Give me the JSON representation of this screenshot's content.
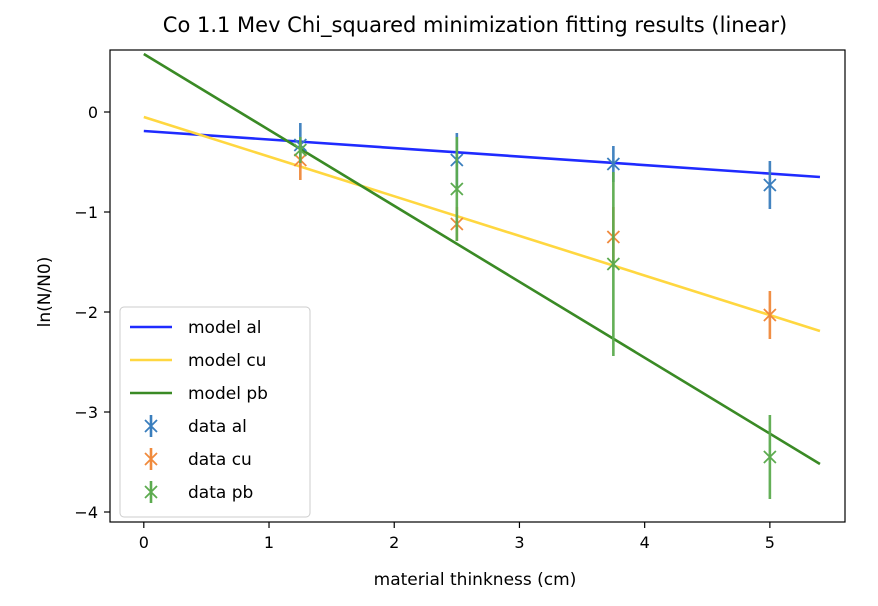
{
  "chart_data": {
    "type": "line",
    "title": "Co 1.1 Mev Chi_squared minimization fitting results (linear)",
    "xlabel": "material thinkness (cm)",
    "ylabel": "ln(N/N0)",
    "xlim": [
      -0.27,
      5.6
    ],
    "ylim": [
      -4.1,
      0.62
    ],
    "xticks": [
      0,
      1,
      2,
      3,
      4,
      5
    ],
    "yticks": [
      0,
      -1,
      -2,
      -3,
      -4
    ],
    "xtick_labels": [
      "0",
      "1",
      "2",
      "3",
      "4",
      "5"
    ],
    "ytick_labels": [
      "0",
      "−1",
      "−2",
      "−3",
      "−4"
    ],
    "grid": false,
    "legend_position": "lower-left",
    "models": [
      {
        "name": "model al",
        "color": "#1f2bff",
        "x": [
          0,
          5.4
        ],
        "y": [
          -0.19,
          -0.65
        ]
      },
      {
        "name": "model cu",
        "color": "#ffd740",
        "x": [
          0,
          5.4
        ],
        "y": [
          -0.05,
          -2.19
        ]
      },
      {
        "name": "model pb",
        "color": "#3a8a25",
        "x": [
          0,
          5.4
        ],
        "y": [
          0.58,
          -3.52
        ]
      }
    ],
    "data_series": [
      {
        "name": "data al",
        "color": "#3a7ebd",
        "x": [
          1.25,
          2.5,
          3.75,
          5.0
        ],
        "y": [
          -0.33,
          -0.48,
          -0.52,
          -0.73
        ],
        "yerr": [
          0.22,
          0.27,
          0.18,
          0.24
        ]
      },
      {
        "name": "data cu",
        "color": "#f08a3c",
        "x": [
          1.25,
          2.5,
          3.75,
          5.0
        ],
        "y": [
          -0.48,
          -1.12,
          -1.25,
          -2.03
        ],
        "yerr": [
          0.2,
          0.17,
          0.3,
          0.24
        ]
      },
      {
        "name": "data pb",
        "color": "#5cab4f",
        "x": [
          1.25,
          2.5,
          3.75,
          5.0
        ],
        "y": [
          -0.38,
          -0.77,
          -1.52,
          -3.45
        ],
        "yerr": [
          0.13,
          0.52,
          0.92,
          0.42
        ]
      }
    ]
  }
}
